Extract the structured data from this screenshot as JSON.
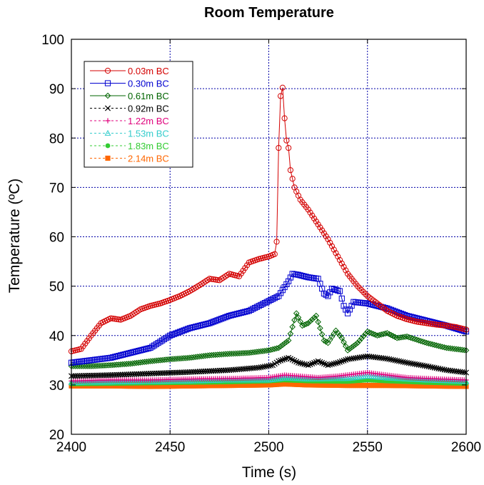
{
  "chart_data": {
    "type": "line",
    "title": "Room Temperature",
    "xlabel": "Time (s)",
    "ylabel": "Temperature (ºC)",
    "xlim": [
      2400,
      2600
    ],
    "ylim": [
      20,
      100
    ],
    "xticks": [
      "2400",
      "2450",
      "2500",
      "2550",
      "2600"
    ],
    "yticks": [
      "20",
      "30",
      "40",
      "50",
      "60",
      "70",
      "80",
      "90",
      "100"
    ],
    "grid": true,
    "legend_position": "top-left",
    "series": [
      {
        "name": "0.03m BC",
        "color": "#d40000",
        "marker": "circle",
        "points": [
          [
            2400,
            36.8
          ],
          [
            2405,
            37.3
          ],
          [
            2410,
            40.0
          ],
          [
            2415,
            42.5
          ],
          [
            2420,
            43.5
          ],
          [
            2425,
            43.2
          ],
          [
            2430,
            44.0
          ],
          [
            2435,
            45.3
          ],
          [
            2440,
            46.0
          ],
          [
            2445,
            46.5
          ],
          [
            2450,
            47.2
          ],
          [
            2455,
            48.0
          ],
          [
            2460,
            49.0
          ],
          [
            2465,
            50.2
          ],
          [
            2470,
            51.5
          ],
          [
            2475,
            51.2
          ],
          [
            2480,
            52.5
          ],
          [
            2485,
            52.0
          ],
          [
            2490,
            54.8
          ],
          [
            2495,
            55.5
          ],
          [
            2500,
            56.0
          ],
          [
            2503,
            56.5
          ],
          [
            2504,
            59.0
          ],
          [
            2505,
            78.0
          ],
          [
            2506,
            88.5
          ],
          [
            2507,
            90.2
          ],
          [
            2508,
            84.0
          ],
          [
            2509,
            79.5
          ],
          [
            2510,
            78.0
          ],
          [
            2511,
            73.5
          ],
          [
            2513,
            70.0
          ],
          [
            2516,
            67.5
          ],
          [
            2520,
            65.5
          ],
          [
            2525,
            62.5
          ],
          [
            2530,
            59.5
          ],
          [
            2535,
            56.0
          ],
          [
            2540,
            52.5
          ],
          [
            2545,
            50.0
          ],
          [
            2550,
            48.0
          ],
          [
            2555,
            46.5
          ],
          [
            2560,
            45.0
          ],
          [
            2565,
            44.0
          ],
          [
            2570,
            43.3
          ],
          [
            2575,
            42.8
          ],
          [
            2580,
            42.5
          ],
          [
            2585,
            42.2
          ],
          [
            2590,
            42.0
          ],
          [
            2595,
            41.7
          ],
          [
            2600,
            41.2
          ]
        ]
      },
      {
        "name": "0.30m BC",
        "color": "#0000d0",
        "marker": "square",
        "points": [
          [
            2400,
            34.5
          ],
          [
            2410,
            35.0
          ],
          [
            2420,
            35.5
          ],
          [
            2430,
            36.5
          ],
          [
            2440,
            37.5
          ],
          [
            2450,
            40.0
          ],
          [
            2460,
            41.5
          ],
          [
            2470,
            42.5
          ],
          [
            2480,
            44.0
          ],
          [
            2490,
            45.0
          ],
          [
            2500,
            47.0
          ],
          [
            2505,
            48.0
          ],
          [
            2510,
            51.0
          ],
          [
            2512,
            52.5
          ],
          [
            2515,
            52.3
          ],
          [
            2520,
            51.8
          ],
          [
            2525,
            51.5
          ],
          [
            2528,
            48.5
          ],
          [
            2530,
            48.0
          ],
          [
            2532,
            49.5
          ],
          [
            2536,
            49.0
          ],
          [
            2538,
            46.0
          ],
          [
            2540,
            44.5
          ],
          [
            2543,
            46.8
          ],
          [
            2550,
            46.5
          ],
          [
            2560,
            45.5
          ],
          [
            2570,
            44.0
          ],
          [
            2580,
            43.0
          ],
          [
            2590,
            42.0
          ],
          [
            2600,
            40.8
          ]
        ]
      },
      {
        "name": "0.61m BC",
        "color": "#006400",
        "marker": "diamond",
        "points": [
          [
            2400,
            33.8
          ],
          [
            2410,
            33.8
          ],
          [
            2420,
            34.0
          ],
          [
            2430,
            34.3
          ],
          [
            2440,
            34.8
          ],
          [
            2450,
            35.2
          ],
          [
            2460,
            35.5
          ],
          [
            2470,
            36.0
          ],
          [
            2480,
            36.3
          ],
          [
            2490,
            36.5
          ],
          [
            2500,
            37.0
          ],
          [
            2505,
            37.5
          ],
          [
            2510,
            39.0
          ],
          [
            2514,
            44.5
          ],
          [
            2517,
            42.0
          ],
          [
            2520,
            42.5
          ],
          [
            2524,
            44.0
          ],
          [
            2528,
            39.0
          ],
          [
            2530,
            38.5
          ],
          [
            2534,
            41.0
          ],
          [
            2537,
            39.5
          ],
          [
            2540,
            37.0
          ],
          [
            2545,
            38.5
          ],
          [
            2550,
            40.8
          ],
          [
            2555,
            40.0
          ],
          [
            2560,
            40.5
          ],
          [
            2565,
            39.5
          ],
          [
            2570,
            39.8
          ],
          [
            2580,
            38.5
          ],
          [
            2590,
            37.5
          ],
          [
            2600,
            37.0
          ]
        ]
      },
      {
        "name": "0.92m BC",
        "color": "#000000",
        "marker": "cross",
        "points": [
          [
            2400,
            31.8
          ],
          [
            2420,
            32.0
          ],
          [
            2440,
            32.3
          ],
          [
            2460,
            32.6
          ],
          [
            2480,
            33.0
          ],
          [
            2495,
            33.5
          ],
          [
            2502,
            34.0
          ],
          [
            2505,
            34.8
          ],
          [
            2510,
            35.5
          ],
          [
            2515,
            34.5
          ],
          [
            2520,
            34.0
          ],
          [
            2525,
            34.8
          ],
          [
            2530,
            34.0
          ],
          [
            2535,
            34.5
          ],
          [
            2540,
            35.2
          ],
          [
            2550,
            35.8
          ],
          [
            2560,
            35.3
          ],
          [
            2570,
            34.5
          ],
          [
            2580,
            33.8
          ],
          [
            2590,
            33.0
          ],
          [
            2600,
            32.5
          ]
        ]
      },
      {
        "name": "1.22m BC",
        "color": "#e0007c",
        "marker": "plus",
        "points": [
          [
            2400,
            30.8
          ],
          [
            2420,
            31.0
          ],
          [
            2440,
            31.0
          ],
          [
            2460,
            31.2
          ],
          [
            2480,
            31.3
          ],
          [
            2500,
            31.5
          ],
          [
            2508,
            32.0
          ],
          [
            2515,
            31.8
          ],
          [
            2525,
            31.5
          ],
          [
            2535,
            31.8
          ],
          [
            2550,
            32.5
          ],
          [
            2560,
            32.0
          ],
          [
            2570,
            31.5
          ],
          [
            2580,
            31.3
          ],
          [
            2600,
            31.0
          ]
        ]
      },
      {
        "name": "1.53m BC",
        "color": "#33cccc",
        "marker": "triangle",
        "points": [
          [
            2400,
            30.5
          ],
          [
            2420,
            30.6
          ],
          [
            2440,
            30.7
          ],
          [
            2460,
            30.8
          ],
          [
            2480,
            31.0
          ],
          [
            2500,
            31.0
          ],
          [
            2508,
            31.4
          ],
          [
            2520,
            31.2
          ],
          [
            2540,
            31.3
          ],
          [
            2550,
            31.8
          ],
          [
            2560,
            31.4
          ],
          [
            2580,
            31.0
          ],
          [
            2600,
            30.7
          ]
        ]
      },
      {
        "name": "1.83m BC",
        "color": "#33cc33",
        "marker": "dot",
        "points": [
          [
            2400,
            30.2
          ],
          [
            2420,
            30.3
          ],
          [
            2440,
            30.4
          ],
          [
            2460,
            30.5
          ],
          [
            2480,
            30.6
          ],
          [
            2500,
            30.8
          ],
          [
            2508,
            31.0
          ],
          [
            2520,
            30.8
          ],
          [
            2540,
            30.7
          ],
          [
            2550,
            31.0
          ],
          [
            2560,
            30.8
          ],
          [
            2580,
            30.5
          ],
          [
            2600,
            30.3
          ]
        ]
      },
      {
        "name": "2.14m BC",
        "color": "#ff6600",
        "marker": "filled-square",
        "points": [
          [
            2400,
            29.8
          ],
          [
            2420,
            29.8
          ],
          [
            2440,
            29.7
          ],
          [
            2460,
            29.8
          ],
          [
            2480,
            29.9
          ],
          [
            2500,
            30.0
          ],
          [
            2508,
            30.2
          ],
          [
            2520,
            30.0
          ],
          [
            2540,
            29.9
          ],
          [
            2560,
            29.9
          ],
          [
            2580,
            29.8
          ],
          [
            2600,
            29.7
          ]
        ]
      }
    ]
  }
}
